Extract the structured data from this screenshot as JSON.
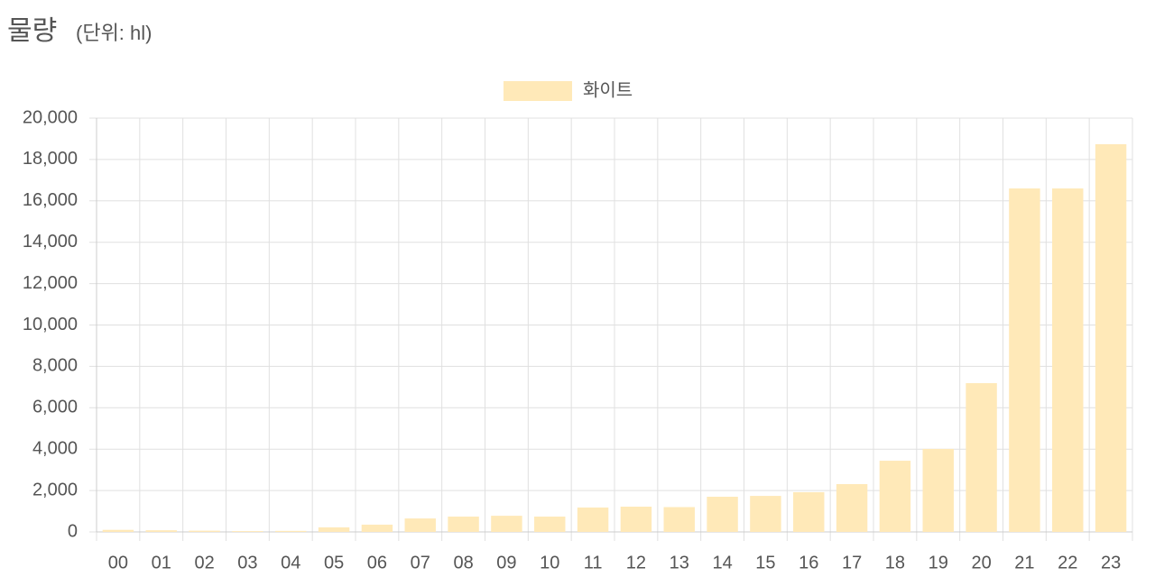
{
  "chart_data": {
    "type": "bar",
    "title": "물량",
    "subtitle": "(단위: hl)",
    "categories": [
      "00",
      "01",
      "02",
      "03",
      "04",
      "05",
      "06",
      "07",
      "08",
      "09",
      "10",
      "11",
      "12",
      "13",
      "14",
      "15",
      "16",
      "17",
      "18",
      "19",
      "20",
      "21",
      "22",
      "23"
    ],
    "series": [
      {
        "name": "화이트",
        "color": "#ffe9b8",
        "values": [
          100,
          80,
          60,
          40,
          50,
          220,
          350,
          650,
          740,
          780,
          740,
          1180,
          1220,
          1200,
          1700,
          1740,
          1920,
          2310,
          3440,
          4010,
          7190,
          16600,
          16600,
          18740
        ]
      }
    ],
    "ylim": [
      0,
      20000
    ],
    "yticks": [
      0,
      {
        "value": 2000,
        "label": "2,000"
      },
      {
        "value": 4000,
        "label": "4,000"
      },
      {
        "value": 6000,
        "label": "6,000"
      },
      {
        "value": 8000,
        "label": "8,000"
      },
      {
        "value": 10000,
        "label": "10,000"
      },
      {
        "value": 12000,
        "label": "12,000"
      },
      {
        "value": 14000,
        "label": "14,000"
      },
      {
        "value": 16000,
        "label": "16,000"
      },
      {
        "value": 18000,
        "label": "18,000"
      },
      {
        "value": 20000,
        "label": "20,000"
      }
    ],
    "grid": true,
    "legend": "top"
  }
}
